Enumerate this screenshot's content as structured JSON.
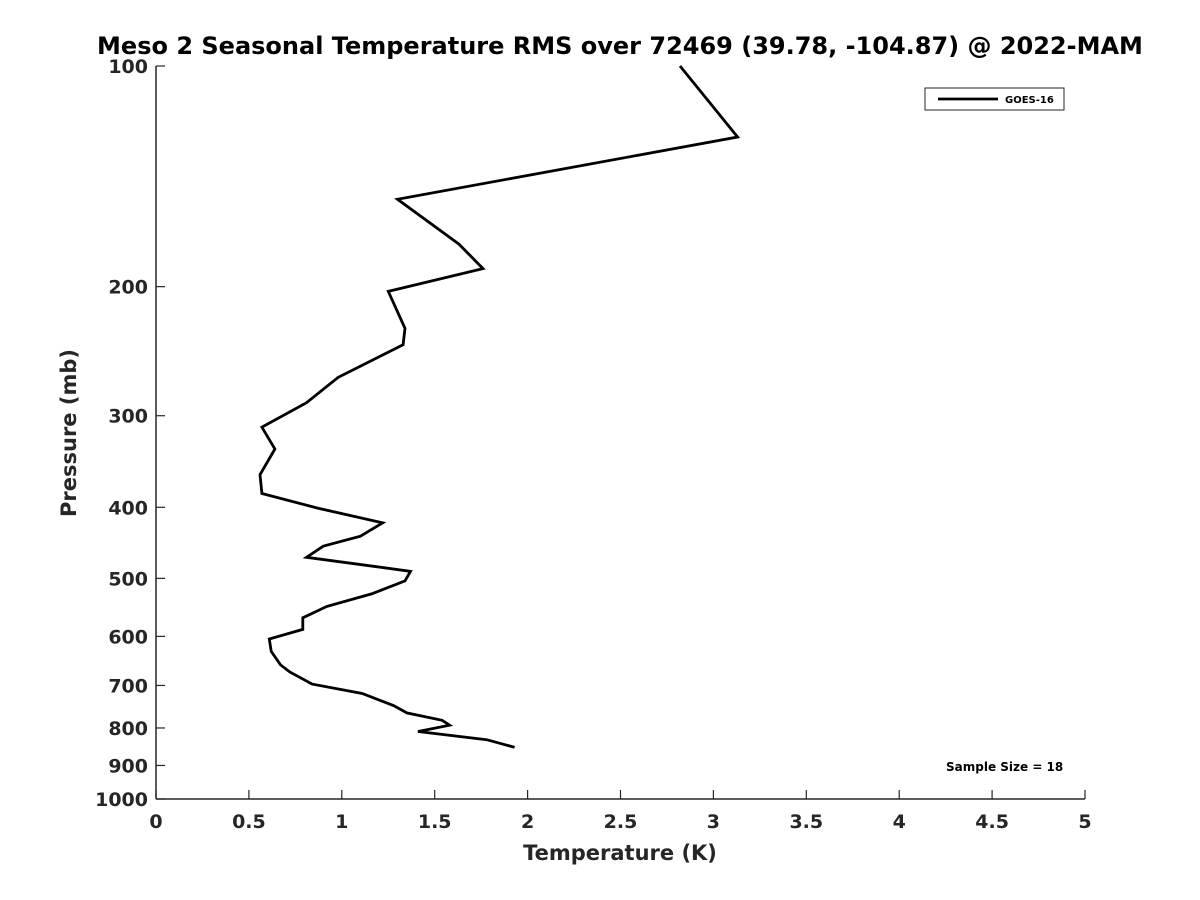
{
  "chart_data": {
    "type": "line",
    "title": "Meso 2 Seasonal Temperature RMS over 72469 (39.78, -104.87) @ 2022-MAM",
    "xlabel": "Temperature (K)",
    "ylabel": "Pressure (mb)",
    "xlim": [
      0,
      5
    ],
    "ylim": [
      100,
      1000
    ],
    "y_scale": "log",
    "y_reversed": true,
    "grid": false,
    "x_ticks": [
      0,
      0.5,
      1,
      1.5,
      2,
      2.5,
      3,
      3.5,
      4,
      4.5,
      5
    ],
    "x_tick_labels": [
      "0",
      "0.5",
      "1",
      "1.5",
      "2",
      "2.5",
      "3",
      "3.5",
      "4",
      "4.5",
      "5"
    ],
    "y_ticks": [
      100,
      200,
      300,
      400,
      500,
      600,
      700,
      800,
      900,
      1000
    ],
    "y_tick_labels": [
      "100",
      "200",
      "300",
      "400",
      "500",
      "600",
      "700",
      "800",
      "900",
      "1000"
    ],
    "legend": {
      "position": "top-right",
      "entries": [
        "GOES-16"
      ]
    },
    "annotation": "Sample Size = 18",
    "series": [
      {
        "name": "GOES-16",
        "color": "#000000",
        "x": [
          2.82,
          3.13,
          1.3,
          1.63,
          1.76,
          1.25,
          1.34,
          1.33,
          0.98,
          0.81,
          0.57,
          0.64,
          0.56,
          0.57,
          0.87,
          1.22,
          1.1,
          0.9,
          0.81,
          1.37,
          1.34,
          1.16,
          0.92,
          0.79,
          0.79,
          0.61,
          0.62,
          0.67,
          0.72,
          0.84,
          1.11,
          1.28,
          1.35,
          1.54,
          1.58,
          1.41,
          1.78,
          1.93
        ],
        "y": [
          100,
          125,
          152,
          175,
          189,
          203,
          228,
          240,
          266,
          288,
          311,
          333,
          361,
          383,
          401,
          420,
          438,
          452,
          468,
          489,
          504,
          525,
          546,
          566,
          587,
          605,
          629,
          656,
          671,
          697,
          718,
          746,
          763,
          781,
          793,
          809,
          830,
          850
        ]
      }
    ]
  }
}
